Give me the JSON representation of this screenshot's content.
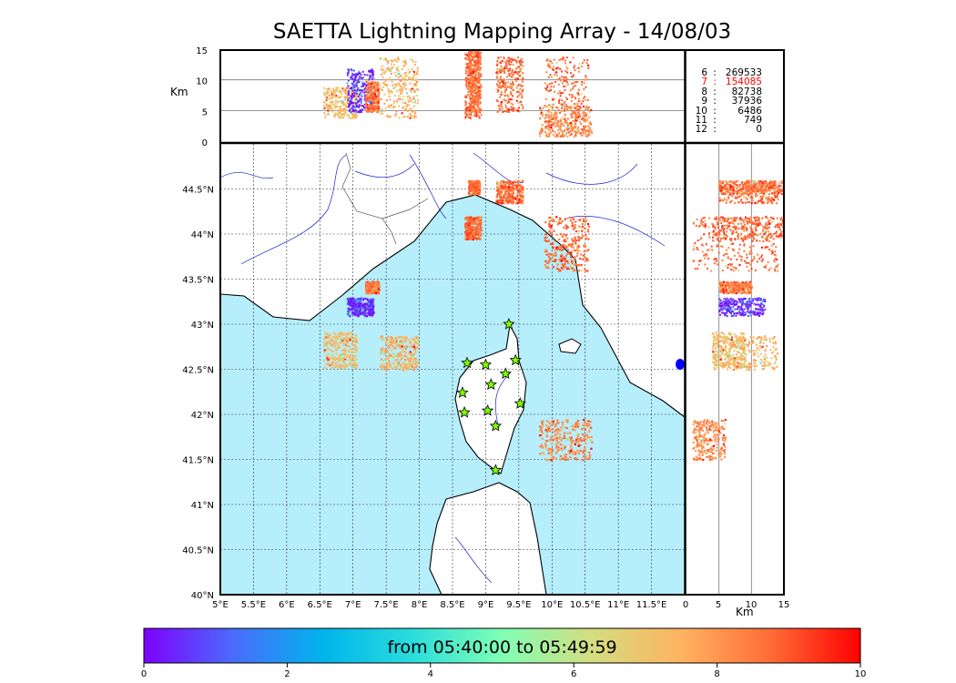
{
  "title": "SAETTA Lightning Mapping Array - 14/08/03",
  "colorbar": {
    "label": "from 05:40:00 to 05:49:59",
    "ticks": [
      "0",
      "2",
      "4",
      "6",
      "8",
      "10"
    ],
    "colors": [
      "#7f00ff",
      "#4a6cfb",
      "#00b4eb",
      "#2adddd",
      "#80ffb4",
      "#d4dd80",
      "#ffb360",
      "#ff6c36",
      "#ff0000"
    ]
  },
  "colors": {
    "sea": "#b6eefb",
    "coast": "#000000",
    "river": "#2020cc",
    "border": "#555555",
    "star": "#7cfc00",
    "highlight": "#ff0000"
  },
  "counts": [
    {
      "level": "6",
      "value": "269533",
      "highlight": false
    },
    {
      "level": "7",
      "value": "154085",
      "highlight": true
    },
    {
      "level": "8",
      "value": "82738",
      "highlight": false
    },
    {
      "level": "9",
      "value": "37936",
      "highlight": false
    },
    {
      "level": "10",
      "value": "6486",
      "highlight": false
    },
    {
      "level": "11",
      "value": "749",
      "highlight": false
    },
    {
      "level": "12",
      "value": "0",
      "highlight": false
    }
  ],
  "chart_data": {
    "type": "scatter",
    "title": "SAETTA Lightning Mapping Array - 14/08/03",
    "map": {
      "xlim": [
        5,
        12
      ],
      "ylim": [
        40,
        45
      ],
      "xticks": [
        "5°E",
        "5.5°E",
        "6°E",
        "6.5°E",
        "7°E",
        "7.5°E",
        "8°E",
        "8.5°E",
        "9°E",
        "9.5°E",
        "10°E",
        "10.5°E",
        "11°E",
        "11.5°E"
      ],
      "yticks": [
        "40°N",
        "40.5°N",
        "41°N",
        "41.5°N",
        "42°N",
        "42.5°N",
        "43°N",
        "43.5°N",
        "44°N",
        "44.5°N"
      ],
      "grid": true
    },
    "altitude_panel": {
      "ylabel": "Km",
      "ylim": [
        0,
        15
      ],
      "yticks": [
        "0",
        "5",
        "10",
        "15"
      ]
    },
    "side_panel": {
      "xlabel": "Km",
      "xlim": [
        0,
        15
      ],
      "xticks": [
        "0",
        "5",
        "10",
        "15"
      ]
    },
    "stations": [
      {
        "lon": 9.35,
        "lat": 43.0
      },
      {
        "lon": 8.72,
        "lat": 42.57
      },
      {
        "lon": 9.0,
        "lat": 42.55
      },
      {
        "lon": 9.45,
        "lat": 42.6
      },
      {
        "lon": 9.3,
        "lat": 42.45
      },
      {
        "lon": 9.08,
        "lat": 42.33
      },
      {
        "lon": 8.65,
        "lat": 42.24
      },
      {
        "lon": 9.52,
        "lat": 42.12
      },
      {
        "lon": 8.68,
        "lat": 42.02
      },
      {
        "lon": 9.03,
        "lat": 42.04
      },
      {
        "lon": 9.15,
        "lat": 41.87
      },
      {
        "lon": 9.15,
        "lat": 41.38
      }
    ],
    "source_clusters": [
      {
        "lon": [
          7.4,
          7.97
        ],
        "lat": [
          42.5,
          42.88
        ],
        "alt": [
          4,
          14
        ],
        "time": 7.5
      },
      {
        "lon": [
          6.55,
          7.05
        ],
        "lat": [
          42.52,
          42.92
        ],
        "alt": [
          4,
          9
        ],
        "time": 7.2
      },
      {
        "lon": [
          6.9,
          7.3
        ],
        "lat": [
          43.1,
          43.3
        ],
        "alt": [
          5,
          12
        ],
        "time": 0.5
      },
      {
        "lon": [
          7.18,
          7.38
        ],
        "lat": [
          43.35,
          43.48
        ],
        "alt": [
          5,
          10
        ],
        "time": 8.5
      },
      {
        "lon": [
          8.68,
          8.92
        ],
        "lat": [
          43.95,
          44.2
        ],
        "alt": [
          4,
          15
        ],
        "time": 8.8
      },
      {
        "lon": [
          8.73,
          8.9
        ],
        "lat": [
          44.45,
          44.6
        ],
        "alt": [
          5,
          15
        ],
        "time": 8.6
      },
      {
        "lon": [
          9.15,
          9.55
        ],
        "lat": [
          44.35,
          44.6
        ],
        "alt": [
          5,
          14
        ],
        "time": 8.7
      },
      {
        "lon": [
          9.88,
          10.55
        ],
        "lat": [
          43.6,
          44.2
        ],
        "alt": [
          1,
          14
        ],
        "time": 8.7
      },
      {
        "lon": [
          9.8,
          10.6
        ],
        "lat": [
          41.5,
          41.95
        ],
        "alt": [
          1,
          6
        ],
        "time": 8.3
      }
    ],
    "xlabel": "Km",
    "ylabel": "Km"
  }
}
